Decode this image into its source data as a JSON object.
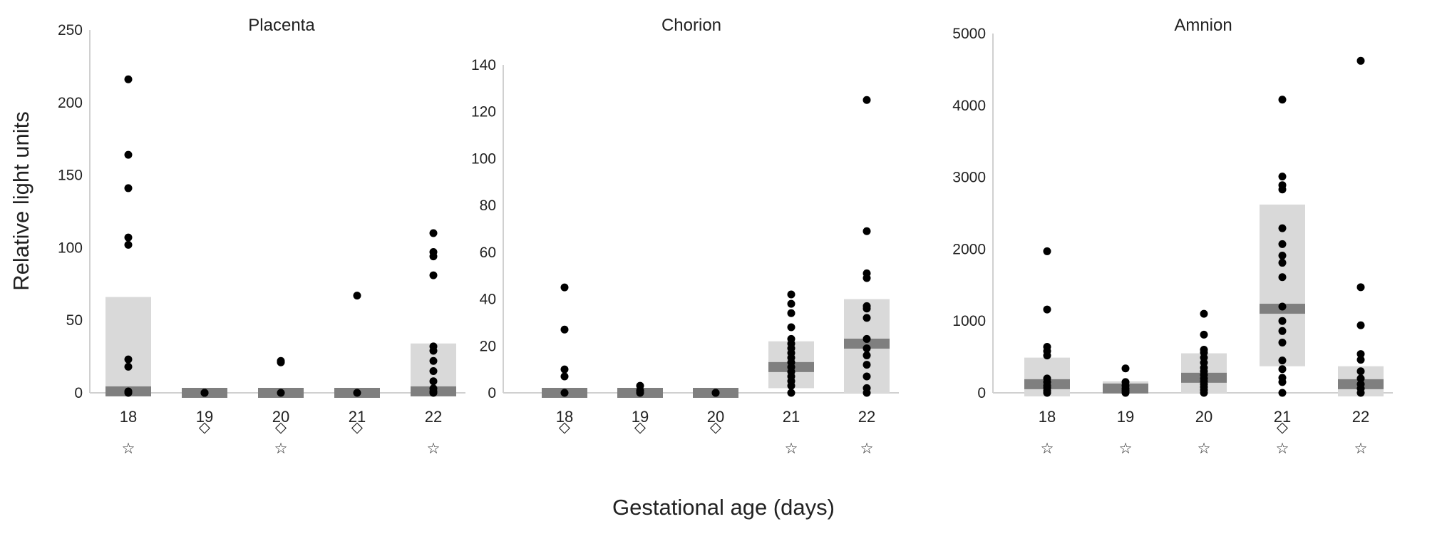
{
  "figure": {
    "ylabel": "Relative light units",
    "xlabel": "Gestational age (days)"
  },
  "colors": {
    "iqr_box": "#d9d9d9",
    "median_bar": "#7f7f7f",
    "point": "#000000",
    "axis": "#d0d0d0"
  },
  "chart_data": [
    {
      "type": "scatter",
      "title": "Placenta",
      "categories": [
        "18",
        "19",
        "20",
        "21",
        "22"
      ],
      "ylim": [
        0,
        250
      ],
      "yticks": [
        "0",
        "50",
        "100",
        "150",
        "200",
        "250"
      ],
      "grid": false,
      "groups": [
        {
          "x": "18",
          "points": [
            216,
            164,
            141,
            107,
            102,
            23,
            18,
            1,
            0
          ],
          "iqr": [
            0,
            66
          ],
          "median": 1,
          "symbol": "☆"
        },
        {
          "x": "19",
          "points": [
            0,
            0,
            0
          ],
          "iqr": [
            0,
            3
          ],
          "median": 0,
          "symbol": "◇"
        },
        {
          "x": "20",
          "points": [
            22,
            21,
            0
          ],
          "iqr": [
            0,
            3
          ],
          "median": 0,
          "symbol": "◇☆"
        },
        {
          "x": "21",
          "points": [
            67,
            0
          ],
          "iqr": [
            0,
            3
          ],
          "median": 0,
          "symbol": "◇"
        },
        {
          "x": "22",
          "points": [
            110,
            97,
            94,
            81,
            32,
            29,
            22,
            15,
            8,
            3,
            1,
            0
          ],
          "iqr": [
            0,
            34
          ],
          "median": 1,
          "symbol": "☆"
        }
      ]
    },
    {
      "type": "scatter",
      "title": "Chorion",
      "categories": [
        "18",
        "19",
        "20",
        "21",
        "22"
      ],
      "ylim": [
        0,
        140
      ],
      "yticks": [
        "0",
        "20",
        "40",
        "60",
        "80",
        "100",
        "120",
        "140"
      ],
      "grid": false,
      "groups": [
        {
          "x": "18",
          "points": [
            45,
            27,
            10,
            7,
            0
          ],
          "iqr": [
            0,
            2
          ],
          "median": 0,
          "symbol": "◇"
        },
        {
          "x": "19",
          "points": [
            3,
            1,
            0
          ],
          "iqr": [
            0,
            2
          ],
          "median": 0,
          "symbol": "◇"
        },
        {
          "x": "20",
          "points": [
            0,
            0
          ],
          "iqr": [
            0,
            2
          ],
          "median": 0,
          "symbol": "◇"
        },
        {
          "x": "21",
          "points": [
            42,
            38,
            34,
            28,
            23,
            21,
            19,
            17,
            15,
            13,
            11,
            9,
            7,
            5,
            3,
            0
          ],
          "iqr": [
            2,
            22
          ],
          "median": 11,
          "symbol": "☆"
        },
        {
          "x": "22",
          "points": [
            125,
            69,
            51,
            49,
            37,
            36,
            32,
            23,
            19,
            16,
            12,
            7,
            2,
            0
          ],
          "iqr": [
            0,
            40
          ],
          "median": 21,
          "symbol": "☆"
        }
      ]
    },
    {
      "type": "scatter",
      "title": "Amnion",
      "categories": [
        "18",
        "19",
        "20",
        "21",
        "22"
      ],
      "ylim": [
        0,
        5000
      ],
      "yticks": [
        "0",
        "1000",
        "2000",
        "3000",
        "4000",
        "5000"
      ],
      "grid": false,
      "groups": [
        {
          "x": "18",
          "points": [
            1970,
            1160,
            640,
            580,
            520,
            200,
            150,
            100,
            70,
            30,
            0
          ],
          "iqr": [
            -50,
            490
          ],
          "median": 120,
          "symbol": "☆"
        },
        {
          "x": "19",
          "points": [
            340,
            150,
            100,
            60,
            30,
            0
          ],
          "iqr": [
            0,
            160
          ],
          "median": 60,
          "symbol": "☆"
        },
        {
          "x": "20",
          "points": [
            1100,
            810,
            600,
            560,
            490,
            420,
            350,
            300,
            250,
            200,
            160,
            120,
            80,
            40,
            0
          ],
          "iqr": [
            0,
            550
          ],
          "median": 210,
          "symbol": "☆"
        },
        {
          "x": "21",
          "points": [
            4080,
            3010,
            2890,
            2830,
            2290,
            2070,
            1910,
            1810,
            1610,
            1200,
            1000,
            860,
            700,
            450,
            330,
            210,
            150,
            0
          ],
          "iqr": [
            370,
            2620
          ],
          "median": 1170,
          "symbol": "◇☆"
        },
        {
          "x": "22",
          "points": [
            4620,
            1470,
            940,
            540,
            460,
            300,
            200,
            120,
            60,
            0
          ],
          "iqr": [
            -50,
            370
          ],
          "median": 120,
          "symbol": "☆"
        }
      ]
    }
  ]
}
